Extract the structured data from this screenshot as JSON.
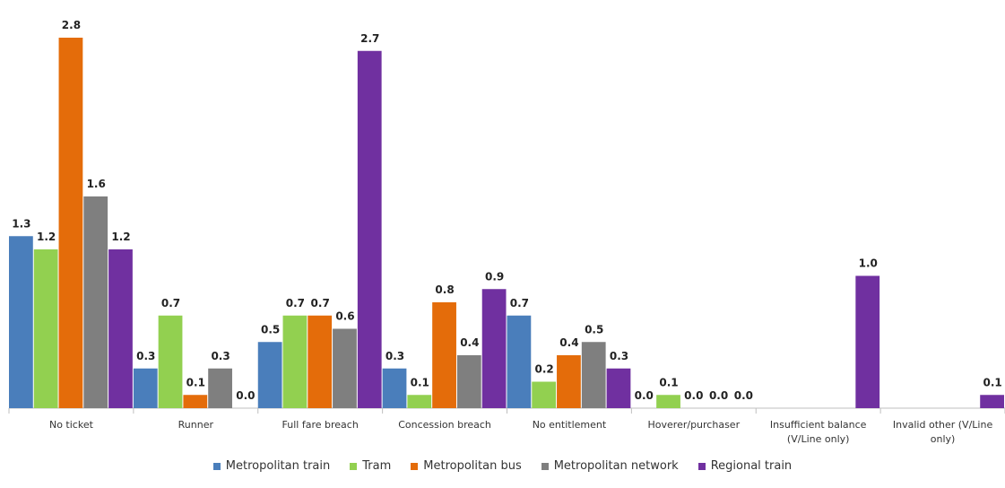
{
  "chart_data": {
    "type": "bar",
    "categories": [
      "No ticket",
      "Runner",
      "Full fare breach",
      "Concession breach",
      "No entitlement",
      "Hoverer/purchaser",
      "Insufficient balance (V/Line only)",
      "Invalid other (V/Line only)"
    ],
    "series": [
      {
        "name": "Metropolitan train",
        "color": "#4a7ebb",
        "values": [
          1.3,
          0.3,
          0.5,
          0.3,
          0.7,
          0,
          null,
          null
        ],
        "value_labels": [
          "1.3",
          "0.3",
          "0.5",
          "0.3",
          "0.7",
          "0.0",
          null,
          null
        ]
      },
      {
        "name": "Tram",
        "color": "#92d050",
        "values": [
          1.2,
          0.7,
          0.7,
          0.1,
          0.2,
          0.1,
          null,
          null
        ],
        "value_labels": [
          "1.2",
          "0.7",
          "0.7",
          "0.1",
          "0.2",
          "0.1",
          null,
          null
        ]
      },
      {
        "name": "Metropolitan bus",
        "color": "#e46c0a",
        "values": [
          2.8,
          0.1,
          0.7,
          0.8,
          0.4,
          0,
          null,
          null
        ],
        "value_labels": [
          "2.8",
          "0.1",
          "0.7",
          "0.8",
          "0.4",
          "0.0",
          null,
          null
        ]
      },
      {
        "name": "Metropolitan network",
        "color": "#7f7f7f",
        "values": [
          1.6,
          0.3,
          0.6,
          0.4,
          0.5,
          0,
          null,
          null
        ],
        "value_labels": [
          "1.6",
          "0.3",
          "0.6",
          "0.4",
          "0.5",
          "0.0",
          null,
          null
        ]
      },
      {
        "name": "Regional train",
        "color": "#7030a0",
        "values": [
          1.2,
          0,
          2.7,
          0.9,
          0.3,
          0,
          1.0,
          0.1
        ],
        "value_labels": [
          "1.2",
          "0.0",
          "2.7",
          "0.9",
          "0.3",
          "0.0",
          "1.0",
          "0.1"
        ]
      }
    ],
    "ylim": [
      0,
      3
    ],
    "grid": false,
    "legend": "bottom"
  }
}
